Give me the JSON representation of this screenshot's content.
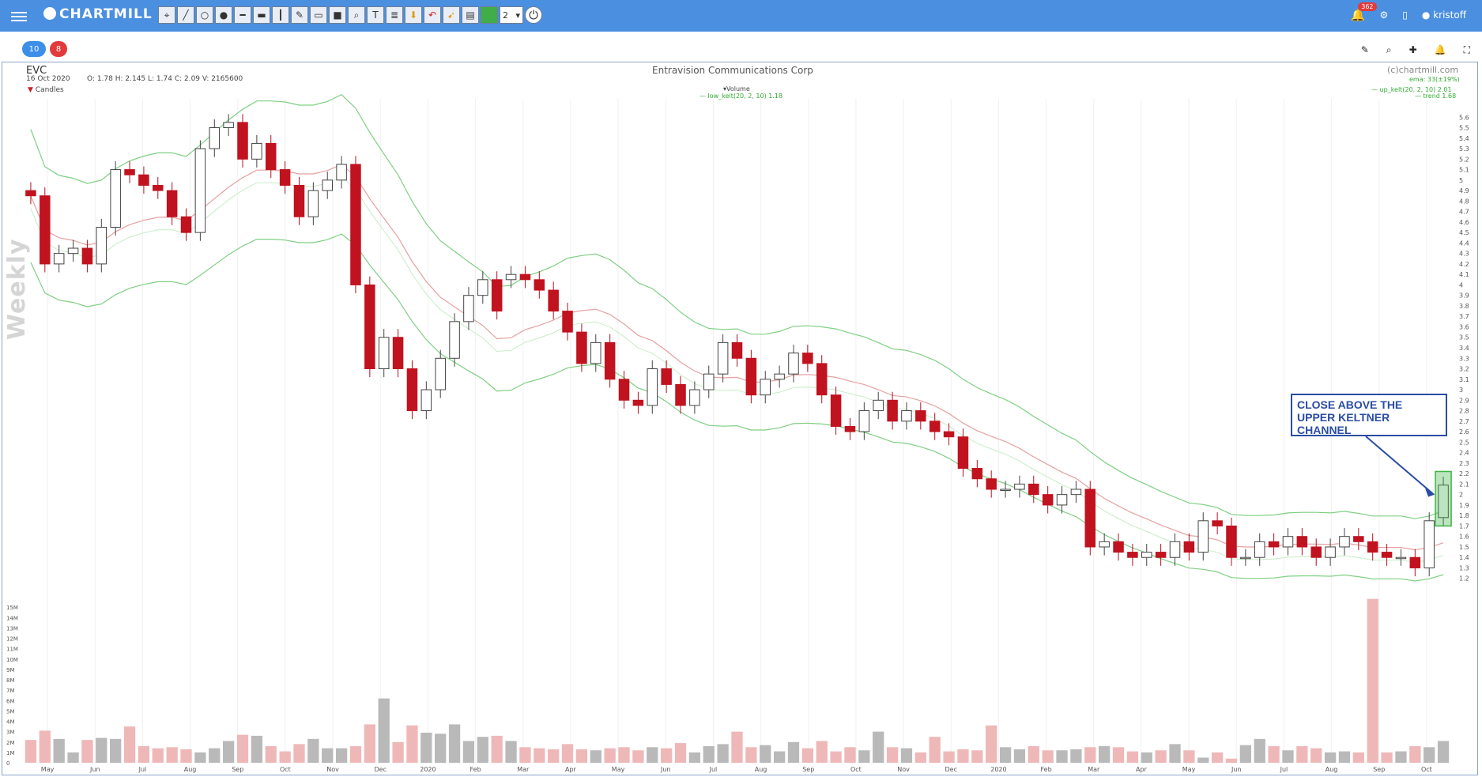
{
  "app": {
    "name": "CHARTMILL"
  },
  "toolbar": {
    "tools": [
      "cursor-icon",
      "line-icon",
      "circle-icon",
      "filled-circle-icon",
      "horizontal-line-icon",
      "thick-line-icon",
      "vertical-line-icon",
      "pencil-icon",
      "rectangle-icon",
      "filled-rectangle-icon",
      "zoom-icon",
      "text-icon",
      "note-icon",
      "arrow-down-icon",
      "undo-icon",
      "trend-icon",
      "save-icon"
    ],
    "color": "#3fae49",
    "width_value": "2"
  },
  "user": {
    "notifications": "362",
    "name": "kristoff"
  },
  "pills": {
    "blue": "10",
    "red": "8"
  },
  "chart": {
    "ticker": "EVC",
    "date": "16 Oct 2020",
    "ohlcv": "O: 1.78   H: 2.145   L: 1.74   C: 2.09     V: 2165600",
    "company": "Entravision Communications Corp",
    "copyright": "(c)chartmill.com",
    "legend_candles": "Candles",
    "legend_volume": "Volume",
    "legend_low": "— low_kelt(20, 2, 10) 1.18",
    "legend_up": "— up_kelt(20, 2, 10) 2.01",
    "legend_trend": "— trend 1.68",
    "legend_ema": "ema: 33(±19%)",
    "watermark": "Weekly",
    "annotation": "CLOSE ABOVE THE UPPER KELTNER CHANNEL"
  },
  "chart_data": {
    "type": "candlestick",
    "title": "Entravision Communications Corp",
    "y_ticks": [
      "5.6",
      "5.5",
      "5.4",
      "5.3",
      "5.2",
      "5.1",
      "5",
      "4.9",
      "4.8",
      "4.7",
      "4.6",
      "4.5",
      "4.4",
      "4.3",
      "4.2",
      "4.1",
      "4",
      "3.9",
      "3.8",
      "3.7",
      "3.6",
      "3.5",
      "3.4",
      "3.3",
      "3.2",
      "3.1",
      "3",
      "2.9",
      "2.8",
      "2.7",
      "2.6",
      "2.5",
      "2.4",
      "2.3",
      "2.2",
      "2.1",
      "2",
      "1.9",
      "1.8",
      "1.7",
      "1.6",
      "1.5",
      "1.4",
      "1.3",
      "1.2"
    ],
    "volume_ticks": [
      "15M",
      "14M",
      "13M",
      "12M",
      "11M",
      "10M",
      "9M",
      "8M",
      "7M",
      "6M",
      "5M",
      "4M",
      "3M",
      "2M",
      "1M",
      "0"
    ],
    "x_labels": [
      "May",
      "Jun",
      "Jul",
      "Aug",
      "Sep",
      "Oct",
      "Nov",
      "Dec",
      "2020",
      "Feb",
      "Mar",
      "Apr",
      "May",
      "Jun",
      "Jul",
      "Aug",
      "Sep",
      "Oct",
      "Nov",
      "Dec",
      "2020",
      "Feb",
      "Mar",
      "Apr",
      "May",
      "Jun",
      "Jul",
      "Aug",
      "Sep",
      "Oct"
    ],
    "ylim": [
      1.1,
      5.7
    ],
    "close": [
      4.85,
      4.2,
      4.3,
      4.35,
      4.2,
      4.55,
      5.1,
      5.05,
      4.95,
      4.9,
      4.65,
      4.5,
      5.3,
      5.5,
      5.55,
      5.2,
      5.35,
      5.1,
      4.95,
      4.65,
      4.9,
      5.0,
      5.15,
      4.0,
      3.2,
      3.5,
      3.2,
      2.8,
      3.0,
      3.3,
      3.65,
      3.9,
      4.05,
      3.75,
      4.1,
      4.05,
      3.95,
      3.75,
      3.55,
      3.25,
      3.45,
      3.1,
      2.9,
      2.85,
      3.2,
      3.05,
      2.85,
      3.0,
      3.15,
      3.45,
      3.3,
      2.95,
      3.1,
      3.15,
      3.35,
      3.25,
      2.95,
      2.65,
      2.6,
      2.8,
      2.9,
      2.7,
      2.8,
      2.7,
      2.6,
      2.55,
      2.25,
      2.15,
      2.05,
      2.05,
      2.1,
      2.0,
      1.9,
      2.0,
      2.05,
      1.5,
      1.55,
      1.45,
      1.4,
      1.45,
      1.4,
      1.55,
      1.45,
      1.75,
      1.7,
      1.4,
      1.4,
      1.55,
      1.5,
      1.6,
      1.5,
      1.4,
      1.5,
      1.6,
      1.55,
      1.45,
      1.4,
      1.4,
      1.3,
      1.75,
      2.09
    ],
    "open": [
      4.9,
      4.85,
      4.2,
      4.3,
      4.35,
      4.2,
      4.55,
      5.1,
      5.05,
      4.95,
      4.9,
      4.65,
      4.5,
      5.3,
      5.5,
      5.55,
      5.2,
      5.35,
      5.1,
      4.95,
      4.65,
      4.9,
      5.0,
      5.15,
      4.0,
      3.2,
      3.5,
      3.2,
      2.8,
      3.0,
      3.3,
      3.65,
      3.9,
      4.05,
      4.05,
      4.1,
      4.05,
      3.95,
      3.75,
      3.55,
      3.25,
      3.45,
      3.1,
      2.9,
      2.85,
      3.2,
      3.05,
      2.85,
      3.0,
      3.15,
      3.45,
      3.3,
      2.95,
      3.1,
      3.15,
      3.35,
      3.25,
      2.95,
      2.65,
      2.6,
      2.8,
      2.9,
      2.7,
      2.8,
      2.7,
      2.6,
      2.55,
      2.25,
      2.15,
      2.05,
      2.05,
      2.1,
      2.0,
      1.9,
      2.0,
      2.05,
      1.5,
      1.55,
      1.45,
      1.4,
      1.45,
      1.4,
      1.55,
      1.45,
      1.75,
      1.7,
      1.4,
      1.4,
      1.55,
      1.5,
      1.6,
      1.5,
      1.4,
      1.5,
      1.6,
      1.55,
      1.45,
      1.4,
      1.4,
      1.3,
      1.78
    ],
    "volume_millions": [
      2.2,
      3.1,
      2.3,
      1.0,
      2.2,
      2.4,
      2.3,
      3.5,
      1.6,
      1.4,
      1.5,
      1.3,
      1.0,
      1.4,
      2.1,
      2.7,
      2.6,
      1.6,
      1.1,
      1.8,
      2.3,
      1.4,
      1.4,
      1.6,
      3.7,
      6.2,
      2.0,
      3.6,
      2.9,
      2.8,
      3.7,
      2.1,
      2.5,
      2.6,
      2.1,
      1.5,
      1.4,
      1.3,
      1.8,
      1.3,
      1.2,
      1.4,
      1.5,
      1.2,
      1.5,
      1.4,
      1.9,
      1.0,
      1.6,
      1.8,
      3.0,
      1.5,
      1.7,
      1.1,
      2.0,
      1.4,
      2.1,
      1.1,
      1.5,
      1.2,
      3.0,
      1.5,
      1.4,
      1.0,
      2.5,
      1.1,
      1.3,
      1.2,
      3.6,
      1.5,
      1.3,
      1.6,
      1.2,
      1.2,
      1.3,
      1.5,
      1.6,
      1.5,
      1.1,
      1.0,
      1.2,
      1.8,
      1.2,
      0.5,
      1.0,
      0.4,
      1.7,
      2.3,
      1.6,
      1.2,
      1.6,
      1.4,
      1.0,
      1.1,
      1.0,
      15.8,
      1.0,
      1.1,
      1.6,
      1.5,
      2.1
    ]
  }
}
